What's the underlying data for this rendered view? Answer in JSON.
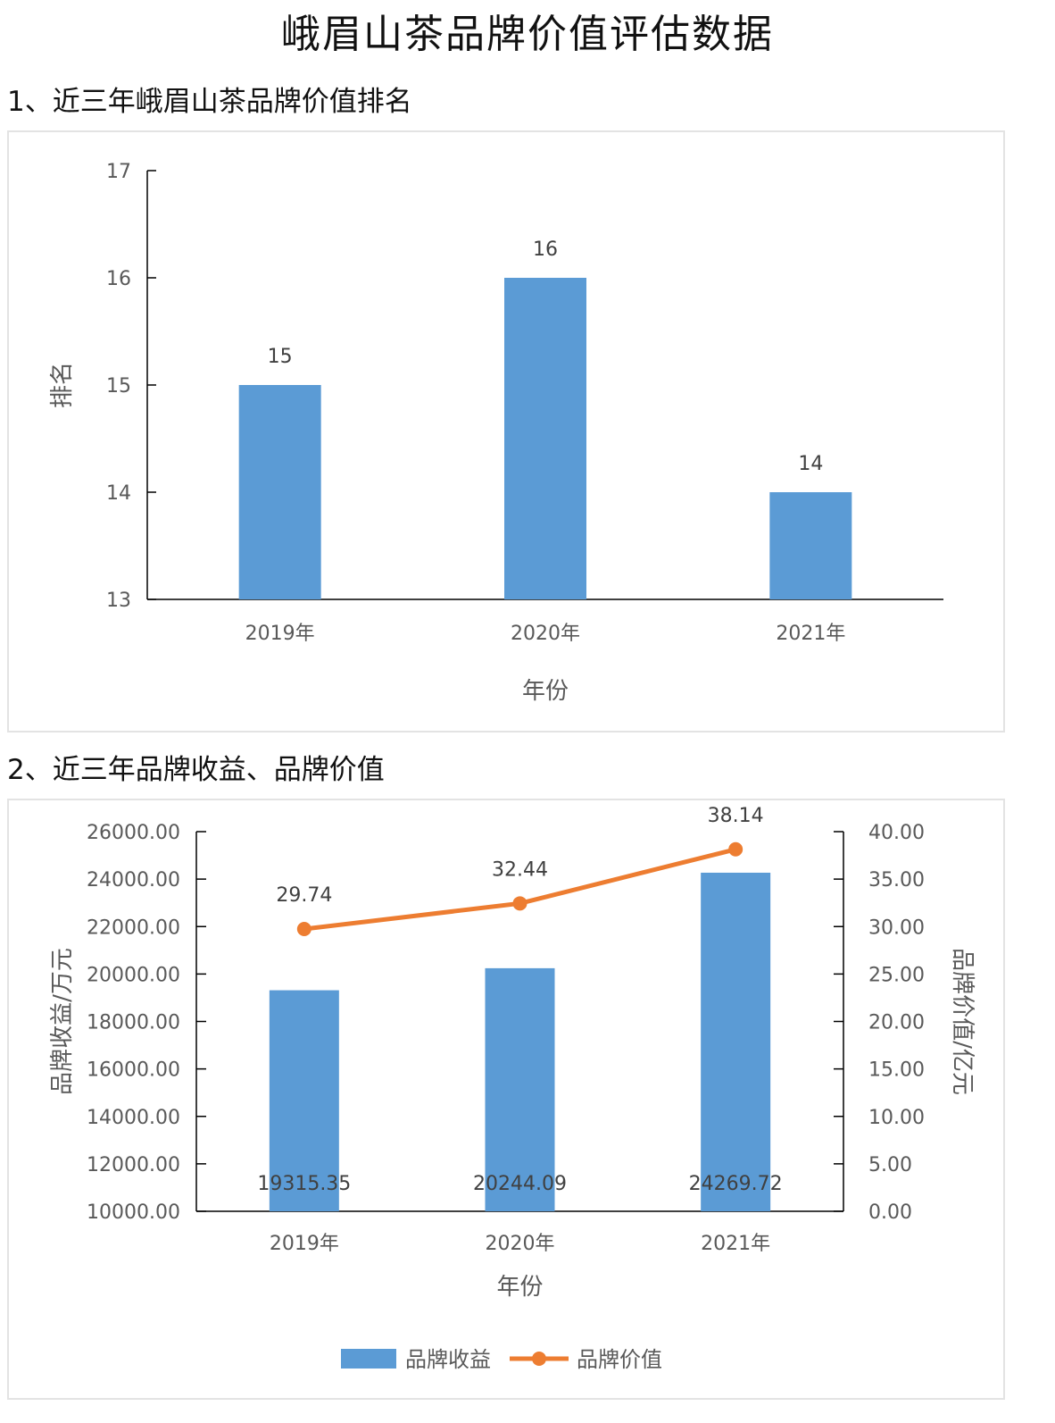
{
  "page": {
    "title": "峨眉山茶品牌价值评估数据",
    "section1": "1、近三年峨眉山茶品牌价值排名",
    "section2": "2、近三年品牌收益、品牌价值"
  },
  "colors": {
    "bar": "#5b9bd5",
    "line": "#ed7d31",
    "axis": "#000000",
    "text": "#595959"
  },
  "chart_data": [
    {
      "type": "bar",
      "categories": [
        "2019年",
        "2020年",
        "2021年"
      ],
      "values": [
        15,
        16,
        14
      ],
      "data_labels": [
        "15",
        "16",
        "14"
      ],
      "xlabel": "年份",
      "ylabel": "排名",
      "ylim": [
        13,
        17
      ],
      "yticks": [
        "13",
        "14",
        "15",
        "16",
        "17"
      ],
      "grid": false
    },
    {
      "type": "bar",
      "categories": [
        "2019年",
        "2020年",
        "2021年"
      ],
      "series": [
        {
          "name": "品牌收益",
          "type": "bar",
          "axis": "left",
          "values": [
            19315.35,
            20244.09,
            24269.72
          ],
          "labels": [
            "19315.35",
            "20244.09",
            "24269.72"
          ]
        },
        {
          "name": "品牌价值",
          "type": "line",
          "axis": "right",
          "values": [
            29.74,
            32.44,
            38.14
          ],
          "labels": [
            "29.74",
            "32.44",
            "38.14"
          ]
        }
      ],
      "xlabel": "年份",
      "ylabel_left": "品牌收益/万元",
      "ylabel_right": "品牌价值/亿元",
      "ylim_left": [
        10000,
        26000
      ],
      "ylim_right": [
        0,
        40
      ],
      "yticks_left": [
        "10000.00",
        "12000.00",
        "14000.00",
        "16000.00",
        "18000.00",
        "20000.00",
        "22000.00",
        "24000.00",
        "26000.00"
      ],
      "yticks_right": [
        "0.00",
        "5.00",
        "10.00",
        "15.00",
        "20.00",
        "25.00",
        "30.00",
        "35.00",
        "40.00"
      ],
      "legend": "bottom",
      "grid": false
    }
  ]
}
